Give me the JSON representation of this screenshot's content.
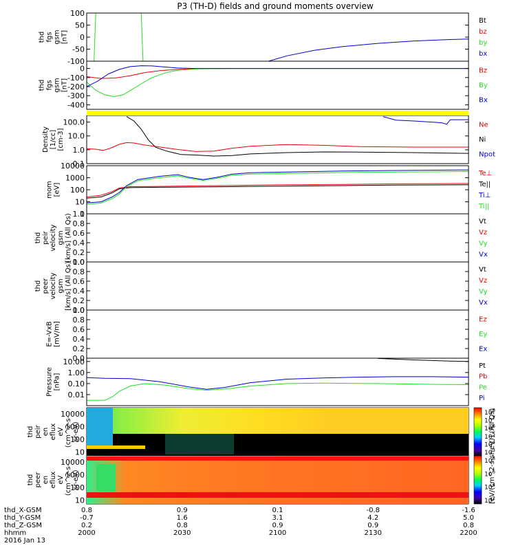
{
  "title": "P3 (TH-D) fields and ground moments overview",
  "colors": {
    "black": "#000000",
    "red": "#ee0000",
    "green": "#22dd22",
    "blue": "#0000cc",
    "yellow": "#ffff00"
  },
  "ephemeris": {
    "labels": [
      "thd_X-GSM",
      "thd_Y-GSM",
      "thd_Z-GSM",
      "hhmm",
      "2016 Jan 13"
    ],
    "columns": [
      {
        "x": "0.8",
        "y": "-0.7",
        "z": "0.2",
        "time": "2000"
      },
      {
        "x": "0.9",
        "y": "1.6",
        "z": "0.8",
        "time": "2030"
      },
      {
        "x": "0.1",
        "y": "3.1",
        "z": "0.9",
        "time": "2100"
      },
      {
        "x": "-0.8",
        "y": "4.2",
        "z": "0.9",
        "time": "2130"
      },
      {
        "x": "-1.6",
        "y": "5.0",
        "z": "0.8",
        "time": "2200"
      }
    ]
  },
  "colorbar": {
    "label": "[eV/(cm^2-s-sr-eV)] (All Qs)",
    "ions_ticks": [
      "10^8",
      "10^7",
      "10^6",
      "10^5",
      "10^4",
      "10^3"
    ],
    "electrons_ticks": [
      "10^8",
      "10^6",
      "10^4",
      "10^2"
    ]
  },
  "chart_data": [
    {
      "type": "line",
      "ylabel": [
        "thd",
        "fgs",
        "gsm",
        "[nT]"
      ],
      "ylim": [
        -100,
        100
      ],
      "yticks": [
        "100",
        "50",
        "0",
        "-50",
        "-100"
      ],
      "series": [
        {
          "name": "Bt",
          "color": "#000000",
          "points": []
        },
        {
          "name": "bz",
          "color": "#ee0000",
          "points": []
        },
        {
          "name": "by",
          "color": "#22dd22",
          "points": [
            [
              4,
              -100
            ],
            [
              5,
              100
            ],
            [
              30,
              100
            ],
            [
              31,
              -100
            ]
          ]
        },
        {
          "name": "bx",
          "color": "#0000cc",
          "points": [
            [
              100,
              -100
            ],
            [
              110,
              -78
            ],
            [
              125,
              -55
            ],
            [
              140,
              -40
            ],
            [
              160,
              -26
            ],
            [
              180,
              -16
            ],
            [
              200,
              -10
            ],
            [
              210,
              -8
            ]
          ]
        }
      ]
    },
    {
      "type": "line",
      "ylabel": [
        "thd",
        "fgs",
        "gsm",
        "[nT]"
      ],
      "ylim": [
        -450,
        80
      ],
      "yticks": [
        "0",
        "-100",
        "-200",
        "-300",
        "-400"
      ],
      "series": [
        {
          "name": "Bz",
          "color": "#ee0000",
          "points": [
            [
              0,
              -90
            ],
            [
              8,
              -110
            ],
            [
              16,
              -105
            ],
            [
              24,
              -80
            ],
            [
              32,
              -45
            ],
            [
              40,
              -25
            ],
            [
              50,
              -10
            ],
            [
              60,
              -3
            ],
            [
              80,
              0
            ],
            [
              120,
              0
            ],
            [
              170,
              0
            ],
            [
              210,
              0
            ]
          ]
        },
        {
          "name": "By",
          "color": "#22dd22",
          "points": [
            [
              0,
              -150
            ],
            [
              5,
              -240
            ],
            [
              10,
              -290
            ],
            [
              15,
              -310
            ],
            [
              20,
              -290
            ],
            [
              25,
              -230
            ],
            [
              30,
              -170
            ],
            [
              35,
              -110
            ],
            [
              40,
              -70
            ],
            [
              45,
              -40
            ],
            [
              50,
              -20
            ],
            [
              60,
              -5
            ],
            [
              80,
              0
            ],
            [
              170,
              0
            ],
            [
              210,
              0
            ]
          ]
        },
        {
          "name": "Bx",
          "color": "#0000cc",
          "points": [
            [
              0,
              -200
            ],
            [
              6,
              -140
            ],
            [
              12,
              -60
            ],
            [
              18,
              -10
            ],
            [
              24,
              20
            ],
            [
              30,
              30
            ],
            [
              36,
              28
            ],
            [
              42,
              18
            ],
            [
              50,
              5
            ],
            [
              60,
              0
            ],
            [
              170,
              0
            ],
            [
              210,
              0
            ]
          ]
        }
      ]
    },
    {
      "type": "line",
      "ylabel": [
        "Density",
        "[1/cc]",
        "[cm-3]"
      ],
      "ylim": [
        0.1,
        300
      ],
      "scale": "log",
      "yticks": [
        "100.0",
        "10.0",
        "1.0",
        "0.1"
      ],
      "series": [
        {
          "name": "Ne",
          "color": "#ee0000",
          "points": [
            [
              0,
              1.2
            ],
            [
              5,
              1.1
            ],
            [
              9,
              0.9
            ],
            [
              13,
              1.3
            ],
            [
              18,
              2.5
            ],
            [
              22,
              3.3
            ],
            [
              26,
              3.1
            ],
            [
              32,
              2.2
            ],
            [
              40,
              1.6
            ],
            [
              50,
              1.05
            ],
            [
              60,
              0.75
            ],
            [
              70,
              0.8
            ],
            [
              80,
              1.3
            ],
            [
              90,
              1.8
            ],
            [
              110,
              2.4
            ],
            [
              130,
              2.1
            ],
            [
              150,
              1.7
            ],
            [
              180,
              1.55
            ],
            [
              210,
              1.55
            ]
          ]
        },
        {
          "name": "Ni",
          "color": "#000000",
          "points": [
            [
              22,
              250
            ],
            [
              26,
              120
            ],
            [
              30,
              30
            ],
            [
              34,
              5
            ],
            [
              38,
              1.5
            ],
            [
              44,
              0.8
            ],
            [
              52,
              0.45
            ],
            [
              60,
              0.42
            ],
            [
              70,
              0.35
            ],
            [
              80,
              0.38
            ],
            [
              90,
              0.5
            ],
            [
              110,
              0.62
            ],
            [
              130,
              0.7
            ],
            [
              150,
              0.68
            ],
            [
              180,
              0.62
            ],
            [
              210,
              0.55
            ]
          ]
        },
        {
          "name": "Npot",
          "color": "#0000cc",
          "points": [
            [
              163,
              250
            ],
            [
              170,
              140
            ],
            [
              180,
              120
            ],
            [
              195,
              90
            ],
            [
              198,
              70
            ],
            [
              200,
              150
            ],
            [
              210,
              150
            ]
          ]
        }
      ]
    },
    {
      "type": "line",
      "ylabel": [
        "mom",
        "[eV]"
      ],
      "ylim": [
        1,
        10000
      ],
      "scale": "log",
      "yticks": [
        "10000",
        "1000",
        "100",
        "10",
        "1"
      ],
      "series": [
        {
          "name": "Te⊥",
          "color": "#ee0000",
          "points": [
            [
              0,
              25
            ],
            [
              8,
              35
            ],
            [
              14,
              70
            ],
            [
              18,
              140
            ],
            [
              24,
              180
            ],
            [
              40,
              190
            ],
            [
              60,
              210
            ],
            [
              80,
              230
            ],
            [
              110,
              260
            ],
            [
              140,
              280
            ],
            [
              170,
              310
            ],
            [
              210,
              330
            ]
          ]
        },
        {
          "name": "Te||",
          "color": "#000000",
          "points": [
            [
              0,
              20
            ],
            [
              8,
              25
            ],
            [
              14,
              55
            ],
            [
              18,
              120
            ],
            [
              24,
              150
            ],
            [
              40,
              160
            ],
            [
              60,
              170
            ],
            [
              80,
              180
            ],
            [
              110,
              200
            ],
            [
              140,
              220
            ],
            [
              170,
              240
            ],
            [
              210,
              260
            ]
          ]
        },
        {
          "name": "Ti⊥",
          "color": "#0000cc",
          "points": [
            [
              0,
              8
            ],
            [
              8,
              10
            ],
            [
              14,
              25
            ],
            [
              18,
              60
            ],
            [
              22,
              220
            ],
            [
              28,
              700
            ],
            [
              40,
              1300
            ],
            [
              50,
              1800
            ],
            [
              56,
              1100
            ],
            [
              64,
              700
            ],
            [
              72,
              1100
            ],
            [
              80,
              2000
            ],
            [
              90,
              2600
            ],
            [
              110,
              3000
            ],
            [
              140,
              3600
            ],
            [
              170,
              4000
            ],
            [
              210,
              4500
            ]
          ]
        },
        {
          "name": "Ti||",
          "color": "#22dd22",
          "points": [
            [
              0,
              6
            ],
            [
              8,
              8
            ],
            [
              14,
              18
            ],
            [
              18,
              45
            ],
            [
              22,
              180
            ],
            [
              28,
              550
            ],
            [
              40,
              1000
            ],
            [
              50,
              1400
            ],
            [
              56,
              900
            ],
            [
              64,
              600
            ],
            [
              72,
              900
            ],
            [
              80,
              1600
            ],
            [
              90,
              2000
            ],
            [
              110,
              2300
            ],
            [
              140,
              2700
            ],
            [
              170,
              3000
            ],
            [
              210,
              3300
            ]
          ]
        }
      ]
    },
    {
      "type": "line",
      "ylabel": [
        "thd",
        "peir",
        "velocity",
        "gsm",
        "[km/s] (All Qs)"
      ],
      "ylim": [
        0,
        1
      ],
      "yticks": [
        "1.0",
        "0.8",
        "0.6",
        "0.4",
        "0.2",
        "0.0"
      ],
      "series": [
        {
          "name": "Vt",
          "color": "#000000",
          "points": []
        },
        {
          "name": "Vz",
          "color": "#ee0000",
          "points": []
        },
        {
          "name": "Vy",
          "color": "#22dd22",
          "points": []
        },
        {
          "name": "Vx",
          "color": "#0000cc",
          "points": []
        }
      ]
    },
    {
      "type": "line",
      "ylabel": [
        "thd",
        "peer",
        "velocity",
        "gsm",
        "[km/s] (All Qs)"
      ],
      "ylim": [
        0,
        1
      ],
      "yticks": [
        "1.0",
        "0.8",
        "0.6",
        "0.4",
        "0.2",
        "0.0"
      ],
      "series": [
        {
          "name": "Vt",
          "color": "#000000",
          "points": []
        },
        {
          "name": "Vz",
          "color": "#ee0000",
          "points": []
        },
        {
          "name": "Vy",
          "color": "#22dd22",
          "points": []
        },
        {
          "name": "Vx",
          "color": "#0000cc",
          "points": []
        }
      ]
    },
    {
      "type": "line",
      "ylabel": [
        "E=-VxB",
        "[mV/m]"
      ],
      "ylim": [
        0,
        1
      ],
      "yticks": [
        "1.0",
        "0.8",
        "0.6",
        "0.4",
        "0.2",
        "0.0"
      ],
      "series": [
        {
          "name": "Ez",
          "color": "#ee0000",
          "points": []
        },
        {
          "name": "Ey",
          "color": "#22dd22",
          "points": []
        },
        {
          "name": "Ex",
          "color": "#0000cc",
          "points": []
        }
      ]
    },
    {
      "type": "line",
      "ylabel": [
        "Pressure",
        "[nPa]"
      ],
      "ylim": [
        0.001,
        20
      ],
      "scale": "log",
      "yticks": [
        "10.00",
        "1.00",
        "0.10",
        "0.01"
      ],
      "series": [
        {
          "name": "Pt",
          "color": "#000000",
          "points": [
            [
              160,
              19
            ],
            [
              180,
              14
            ],
            [
              200,
              11
            ],
            [
              210,
              10
            ]
          ]
        },
        {
          "name": "Pb",
          "color": "#ee0000",
          "points": []
        },
        {
          "name": "Pe",
          "color": "#22dd22",
          "points": [
            [
              0,
              0.003
            ],
            [
              10,
              0.003
            ],
            [
              14,
              0.006
            ],
            [
              18,
              0.02
            ],
            [
              24,
              0.06
            ],
            [
              32,
              0.1
            ],
            [
              44,
              0.07
            ],
            [
              56,
              0.035
            ],
            [
              66,
              0.025
            ],
            [
              78,
              0.035
            ],
            [
              90,
              0.06
            ],
            [
              110,
              0.1
            ],
            [
              130,
              0.11
            ],
            [
              160,
              0.1
            ],
            [
              190,
              0.085
            ],
            [
              210,
              0.08
            ]
          ]
        },
        {
          "name": "Pi",
          "color": "#0000cc",
          "points": [
            [
              0,
              0.35
            ],
            [
              10,
              0.3
            ],
            [
              24,
              0.28
            ],
            [
              40,
              0.15
            ],
            [
              56,
              0.05
            ],
            [
              66,
              0.03
            ],
            [
              76,
              0.045
            ],
            [
              90,
              0.12
            ],
            [
              110,
              0.25
            ],
            [
              130,
              0.32
            ],
            [
              150,
              0.38
            ],
            [
              170,
              0.42
            ],
            [
              190,
              0.42
            ],
            [
              210,
              0.38
            ]
          ]
        }
      ]
    },
    {
      "type": "heatmap",
      "ylabel": [
        "thd",
        "peir",
        "en",
        "eflux",
        "eV",
        "(cm^2-s-",
        "sr-eV)"
      ],
      "ylim": [
        5,
        30000
      ],
      "scale": "log",
      "yticks": [
        "10000",
        "1000",
        "100",
        "10"
      ]
    },
    {
      "type": "heatmap",
      "ylabel": [
        "thd",
        "peer",
        "en",
        "eflux",
        "eV",
        "(cm^2-s-",
        "sr-eV)"
      ],
      "ylim": [
        5,
        30000
      ],
      "scale": "log",
      "yticks": [
        "10000",
        "1000",
        "100",
        "10"
      ]
    }
  ]
}
